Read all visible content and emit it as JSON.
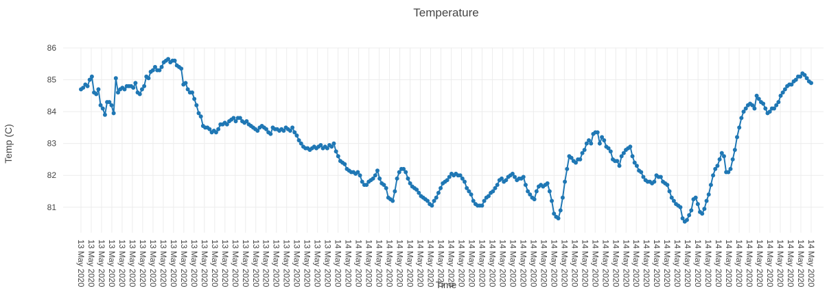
{
  "chart_data": {
    "type": "line",
    "title": "Temperature",
    "xlabel": "Time",
    "ylabel": "Temp (C)",
    "ylim": [
      80.2,
      86.0
    ],
    "yticks": [
      81,
      82,
      83,
      84,
      85,
      86
    ],
    "x_tick_labels": [
      "13 May 2020",
      "13 May 2020",
      "13 May 2020",
      "13 May 2020",
      "13 May 2020",
      "13 May 2020",
      "13 May 2020",
      "13 May 2020",
      "13 May 2020",
      "13 May 2020",
      "13 May 2020",
      "13 May 2020",
      "13 May 2020",
      "13 May 2020",
      "13 May 2020",
      "13 May 2020",
      "13 May 2020",
      "13 May 2020",
      "13 May 2020",
      "13 May 2020",
      "13 May 2020",
      "13 May 2020",
      "13 May 2020",
      "13 May 2020",
      "13 May 2020",
      "14 May 2020",
      "14 May 2020",
      "14 May 2020",
      "14 May 2020",
      "14 May 2020",
      "14 May 2020",
      "14 May 2020",
      "14 May 2020",
      "14 May 2020",
      "14 May 2020",
      "14 May 2020",
      "14 May 2020",
      "14 May 2020",
      "14 May 2020",
      "14 May 2020",
      "14 May 2020",
      "14 May 2020",
      "14 May 2020",
      "14 May 2020",
      "14 May 2020",
      "14 May 2020",
      "14 May 2020",
      "14 May 2020",
      "14 May 2020",
      "14 May 2020",
      "14 May 2020",
      "14 May 2020",
      "14 May 2020",
      "14 May 2020",
      "14 May 2020",
      "14 May 2020",
      "14 May 2020",
      "14 May 2020",
      "14 May 2020",
      "14 May 2020",
      "14 May 2020",
      "14 May 2020",
      "14 May 2020",
      "14 May 2020",
      "14 May 2020",
      "14 May 2020",
      "14 May 2020",
      "14 May 2020",
      "14 May 2020",
      "14 May 2020",
      "14 May 2020",
      "14 May 2020"
    ],
    "grid": true,
    "legend": "none",
    "series": [
      {
        "color": "#1f77b4",
        "values": [
          84.7,
          84.75,
          84.85,
          84.8,
          85.0,
          85.1,
          84.6,
          84.55,
          84.7,
          84.2,
          84.1,
          83.9,
          84.3,
          84.3,
          84.2,
          83.95,
          85.05,
          84.6,
          84.7,
          84.75,
          84.7,
          84.8,
          84.8,
          84.8,
          84.75,
          84.9,
          84.6,
          84.55,
          84.7,
          84.8,
          85.1,
          85.05,
          85.25,
          85.3,
          85.4,
          85.3,
          85.3,
          85.4,
          85.55,
          85.6,
          85.65,
          85.55,
          85.6,
          85.6,
          85.45,
          85.4,
          85.35,
          84.85,
          84.9,
          84.7,
          84.6,
          84.6,
          84.4,
          84.2,
          83.95,
          83.85,
          83.55,
          83.5,
          83.5,
          83.45,
          83.35,
          83.4,
          83.35,
          83.45,
          83.6,
          83.6,
          83.65,
          83.6,
          83.7,
          83.75,
          83.8,
          83.7,
          83.8,
          83.8,
          83.7,
          83.65,
          83.7,
          83.6,
          83.55,
          83.5,
          83.45,
          83.4,
          83.5,
          83.55,
          83.5,
          83.45,
          83.35,
          83.3,
          83.5,
          83.45,
          83.45,
          83.4,
          83.45,
          83.4,
          83.5,
          83.45,
          83.4,
          83.5,
          83.35,
          83.25,
          83.1,
          83.0,
          82.9,
          82.85,
          82.85,
          82.8,
          82.85,
          82.9,
          82.85,
          82.9,
          82.95,
          82.85,
          82.9,
          82.85,
          82.95,
          82.9,
          83.0,
          82.75,
          82.6,
          82.45,
          82.4,
          82.35,
          82.2,
          82.15,
          82.1,
          82.1,
          82.05,
          82.1,
          82.0,
          81.8,
          81.7,
          81.7,
          81.8,
          81.85,
          81.9,
          82.0,
          82.15,
          81.9,
          81.75,
          81.7,
          81.6,
          81.3,
          81.25,
          81.2,
          81.5,
          81.9,
          82.1,
          82.2,
          82.2,
          82.1,
          81.9,
          81.75,
          81.65,
          81.6,
          81.55,
          81.45,
          81.35,
          81.3,
          81.25,
          81.2,
          81.1,
          81.05,
          81.2,
          81.3,
          81.45,
          81.6,
          81.75,
          81.8,
          81.85,
          81.95,
          82.05,
          82.0,
          82.05,
          82.0,
          82.0,
          81.9,
          81.8,
          81.6,
          81.5,
          81.4,
          81.2,
          81.1,
          81.05,
          81.05,
          81.05,
          81.2,
          81.3,
          81.35,
          81.45,
          81.5,
          81.6,
          81.7,
          81.85,
          81.9,
          81.8,
          81.85,
          81.95,
          82.0,
          82.05,
          81.95,
          81.85,
          81.9,
          81.9,
          81.95,
          81.7,
          81.5,
          81.4,
          81.3,
          81.25,
          81.5,
          81.65,
          81.7,
          81.65,
          81.7,
          81.75,
          81.5,
          81.2,
          80.8,
          80.7,
          80.65,
          80.9,
          81.3,
          81.8,
          82.2,
          82.6,
          82.55,
          82.45,
          82.4,
          82.5,
          82.5,
          82.7,
          82.8,
          83.0,
          83.1,
          83.0,
          83.3,
          83.35,
          83.35,
          83.0,
          83.2,
          83.1,
          82.9,
          82.85,
          82.75,
          82.5,
          82.45,
          82.45,
          82.3,
          82.6,
          82.7,
          82.8,
          82.85,
          82.9,
          82.6,
          82.4,
          82.3,
          82.15,
          82.1,
          81.95,
          81.85,
          81.8,
          81.8,
          81.75,
          81.8,
          82.0,
          81.95,
          81.95,
          81.8,
          81.75,
          81.7,
          81.5,
          81.3,
          81.2,
          81.1,
          81.05,
          81.0,
          80.65,
          80.55,
          80.6,
          80.75,
          80.9,
          81.25,
          81.3,
          81.1,
          80.85,
          80.8,
          80.95,
          81.2,
          81.4,
          81.7,
          82.0,
          82.2,
          82.3,
          82.5,
          82.7,
          82.6,
          82.1,
          82.1,
          82.2,
          82.5,
          82.8,
          83.2,
          83.5,
          83.8,
          84.0,
          84.1,
          84.2,
          84.25,
          84.2,
          84.1,
          84.5,
          84.4,
          84.3,
          84.25,
          84.1,
          83.95,
          84.0,
          84.1,
          84.1,
          84.2,
          84.3,
          84.5,
          84.6,
          84.7,
          84.8,
          84.85,
          84.85,
          84.95,
          85.0,
          85.1,
          85.1,
          85.2,
          85.15,
          85.05,
          84.95,
          84.9
        ]
      }
    ]
  }
}
